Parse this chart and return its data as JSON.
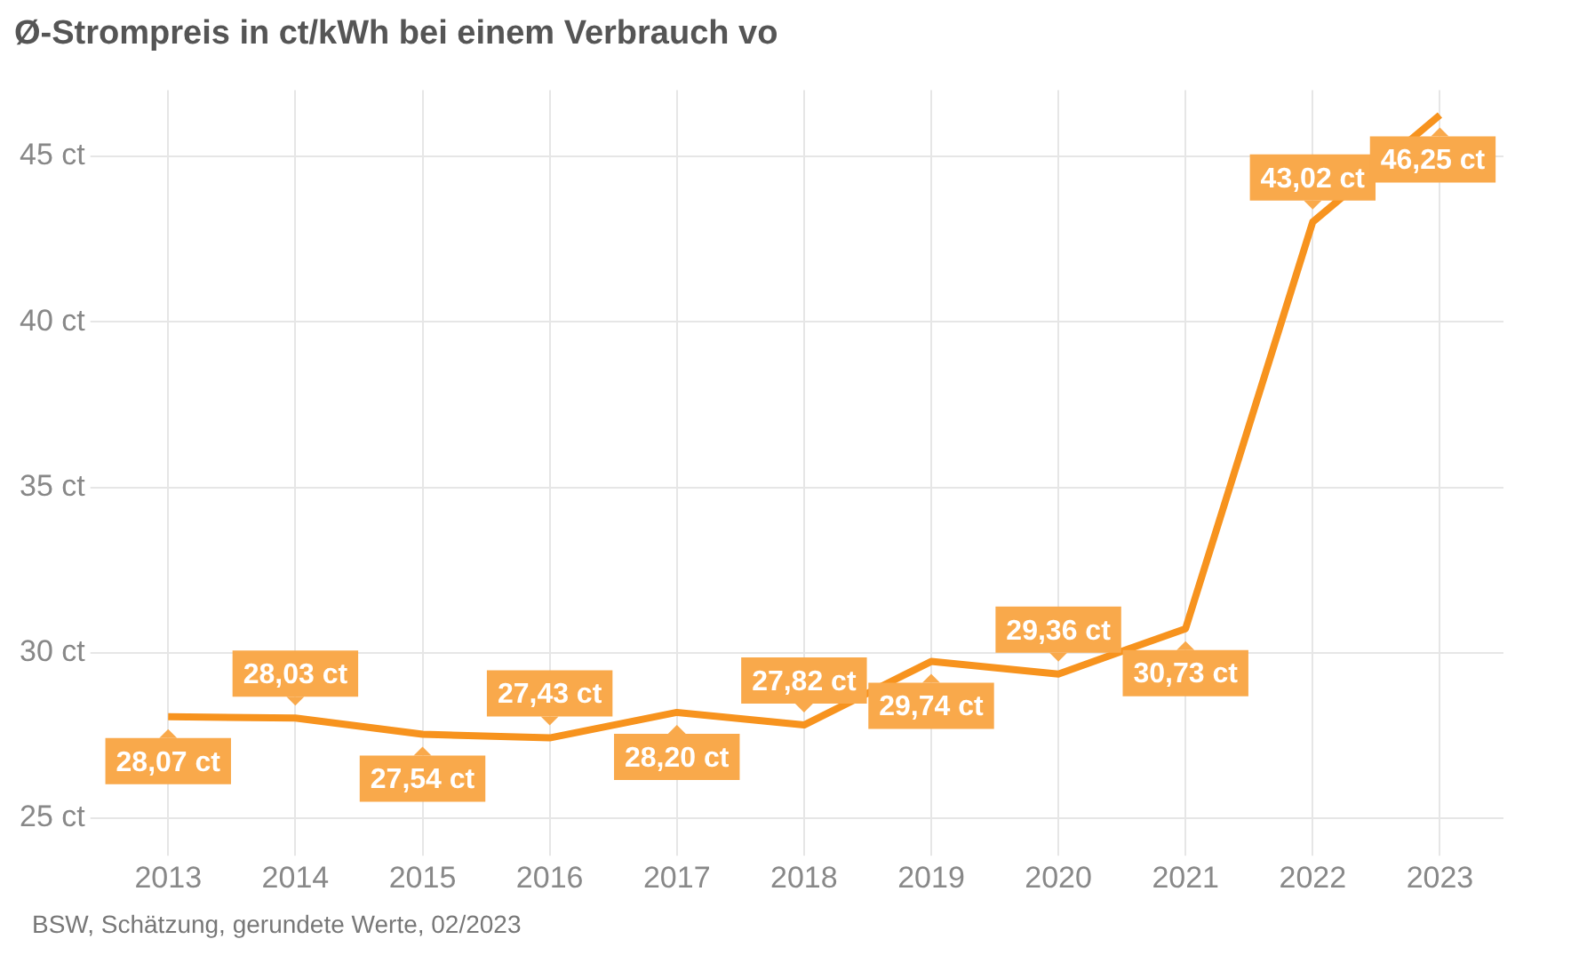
{
  "chart_data": {
    "type": "line",
    "title": "Ø-Strompreis in ct/kWh bei einem Verbrauch vo",
    "categories": [
      "2013",
      "2014",
      "2015",
      "2016",
      "2017",
      "2018",
      "2019",
      "2020",
      "2021",
      "2022",
      "2023"
    ],
    "series": [
      {
        "color": "#f7931e",
        "values": [
          28.07,
          28.03,
          27.54,
          27.43,
          28.2,
          27.82,
          29.74,
          29.36,
          30.73,
          43.02,
          46.25
        ],
        "value_labels": [
          "28,07 ct",
          "28,03 ct",
          "27,54 ct",
          "27,43 ct",
          "28,20 ct",
          "27,82 ct",
          "29,74 ct",
          "29,36 ct",
          "30,73 ct",
          "43,02 ct",
          "46,25 ct"
        ]
      }
    ],
    "ylim": [
      24.3,
      47
    ],
    "yticks": [
      {
        "value": 25,
        "label": "25 ct"
      },
      {
        "value": 30,
        "label": "30 ct"
      },
      {
        "value": 35,
        "label": "35 ct"
      },
      {
        "value": 40,
        "label": "40 ct"
      },
      {
        "value": 45,
        "label": "45 ct"
      }
    ],
    "grid": true,
    "legend": false,
    "marker": "none",
    "line_style": "solid",
    "annotations": [
      "BSW, Schätzung, gerundete Werte, 02/2023"
    ]
  }
}
